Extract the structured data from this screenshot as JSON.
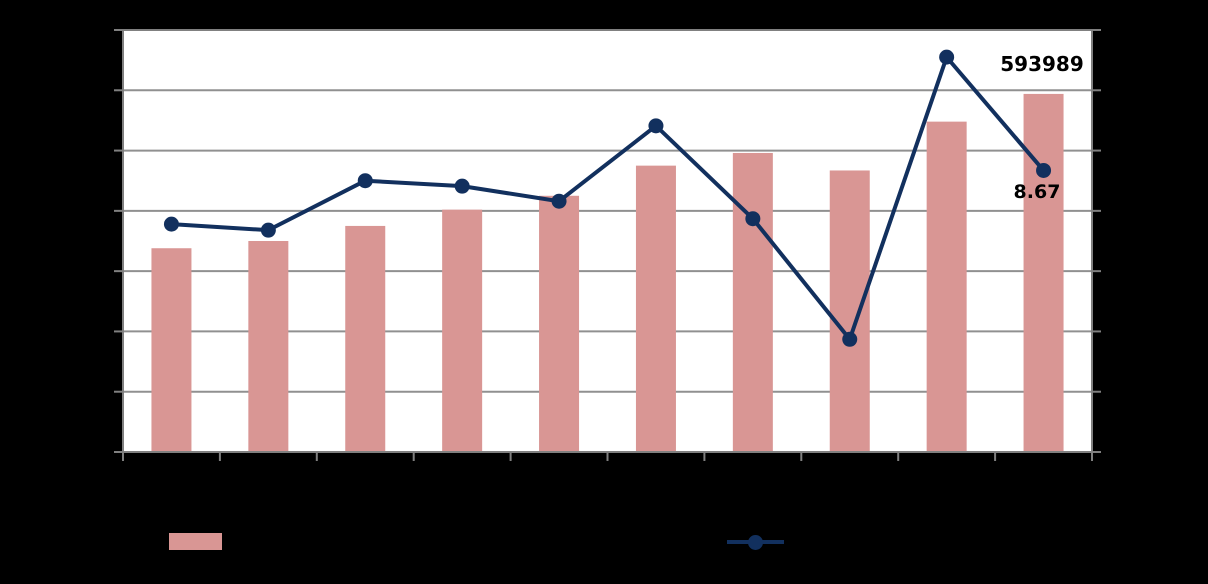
{
  "colors": {
    "background": "#000000",
    "plot_background": "#FFFFFF",
    "gridline": "#909090",
    "axis_border": "#808080",
    "tick": "#808080",
    "bar_fill": "#D99694",
    "line_stroke": "#12305E",
    "data_label_text": "#000000"
  },
  "chart_data": {
    "type": "combo-bar-line",
    "n_categories": 10,
    "categories": [
      "",
      "",
      "",
      "",
      "",
      "",
      "",
      "",
      "",
      ""
    ],
    "series": [
      {
        "name": "",
        "type": "bar",
        "axis": "left",
        "color": "#D99694",
        "values": [
          338000,
          350000,
          375000,
          402000,
          425000,
          475000,
          496000,
          467000,
          548000,
          593989
        ]
      },
      {
        "name": "",
        "type": "line",
        "axis": "right",
        "color": "#12305E",
        "values": [
          7.78,
          7.68,
          8.5,
          8.41,
          8.16,
          9.41,
          7.87,
          5.87,
          10.55,
          8.67
        ]
      }
    ],
    "ylim_left": [
      0,
      700000
    ],
    "ylim_right": [
      4,
      11
    ],
    "y_intervals": 7,
    "grid": true,
    "legend_position": "bottom",
    "data_labels": {
      "last_bar": "593989",
      "last_point": "8.67"
    }
  }
}
